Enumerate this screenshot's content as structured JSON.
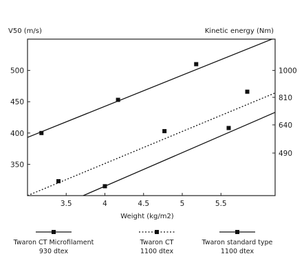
{
  "chart_data": {
    "type": "line",
    "xlabel": "Weight (kg/m2)",
    "ylabel": "V50 (m/s)",
    "y2label": "Kinetic energy (Nm)",
    "xlim": [
      3.0,
      6.2
    ],
    "ylim": [
      300,
      550
    ],
    "xticks": [
      "3.5",
      "4",
      "4.5",
      "5",
      "5.5"
    ],
    "yticks": [
      "350",
      "400",
      "450",
      "500"
    ],
    "y2ticks": [
      {
        "v50": 368,
        "label": "490"
      },
      {
        "v50": 413,
        "label": "640"
      },
      {
        "v50": 457,
        "label": "810"
      },
      {
        "v50": 500,
        "label": "1000"
      }
    ],
    "grid": false,
    "legend_position": "bottom",
    "series": [
      {
        "name": "Twaron CT Microfilament",
        "sub": "930 dtex",
        "style": "solid",
        "line": [
          [
            3.0,
            393
          ],
          [
            6.2,
            552
          ]
        ],
        "x": [
          3.18,
          4.17,
          5.18
        ],
        "y": [
          400,
          453,
          510
        ]
      },
      {
        "name": "Twaron CT",
        "sub": "1100 dtex",
        "style": "dotted",
        "line": [
          [
            3.0,
            300
          ],
          [
            6.2,
            464
          ]
        ],
        "x": [
          3.4,
          4.77,
          5.84
        ],
        "y": [
          323,
          403,
          466
        ]
      },
      {
        "name": "Twaron standard type",
        "sub": "1100 dtex",
        "style": "solid",
        "line": [
          [
            3.72,
            300
          ],
          [
            6.2,
            433
          ]
        ],
        "x": [
          4.0,
          5.6
        ],
        "y": [
          315,
          408
        ]
      }
    ]
  }
}
